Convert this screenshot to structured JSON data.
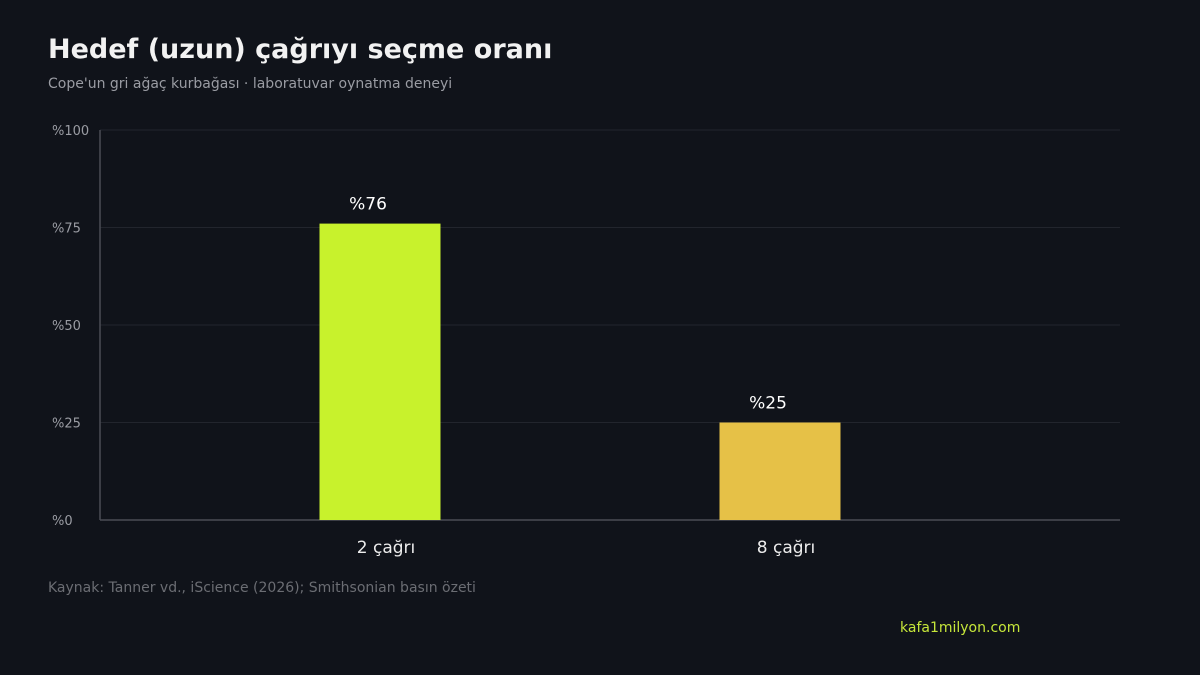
{
  "title": "Hedef (uzun) çağrıyı seçme oranı",
  "subtitle": "Cope'un gri ağaç kurbağası · laboratuvar oynatma deneyi",
  "source": "Kaynak: Tanner vd., iScience (2026); Smithsonian basın özeti",
  "site": "kafa1milyon.com",
  "chart_data": {
    "type": "bar",
    "title": "Hedef (uzun) çağrıyı seçme oranı",
    "subtitle": "Cope'un gri ağaç kurbağası · laboratuvar oynatma deneyi",
    "categories": [
      "2 çağrı",
      "8 çağrı"
    ],
    "values": [
      76,
      25
    ],
    "value_labels": [
      "%76",
      "%25"
    ],
    "bar_colors": [
      "#c8f22c",
      "#e6c147"
    ],
    "xlabel": "",
    "ylabel": "",
    "ylim": [
      0,
      100
    ],
    "yticks": [
      0,
      25,
      50,
      75,
      100
    ],
    "ytick_labels": [
      "%0",
      "%25",
      "%50",
      "%75",
      "%100"
    ],
    "grid": true,
    "legend": "none"
  },
  "colors": {
    "background": "#10131a",
    "grid": "#22252d",
    "axis": "#4a4d55",
    "tick_text": "#9a9ca3",
    "category_text": "#ececec",
    "value_text": "#ffffff",
    "accent": "#c6e63a"
  }
}
